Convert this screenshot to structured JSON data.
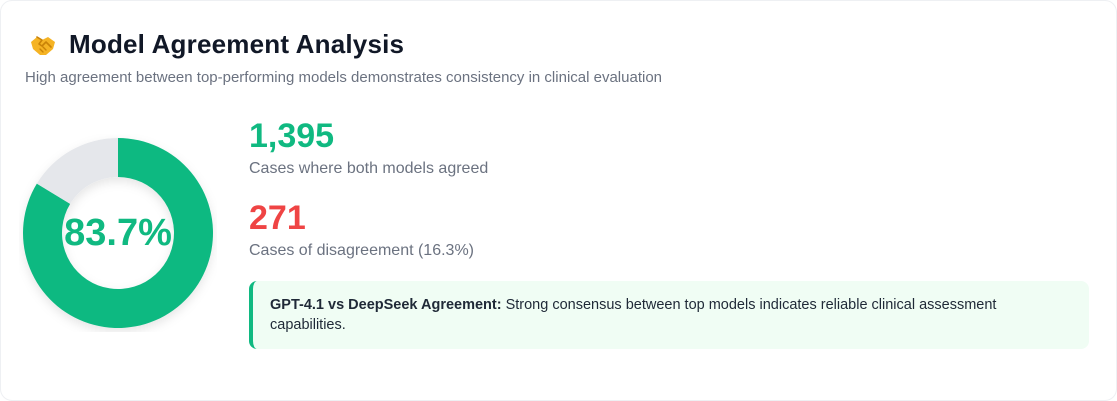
{
  "header": {
    "icon": "handshake-icon",
    "title": "Model Agreement Analysis",
    "subtitle": "High agreement between top-performing models demonstrates consistency in clinical evaluation"
  },
  "colors": {
    "agree": "#10b981",
    "disagree": "#e5e7eb",
    "disagree_text": "#ef4444"
  },
  "chart_data": {
    "type": "pie",
    "labels": [
      "",
      ""
    ],
    "values": [
      83.7,
      16.3
    ],
    "center_label": "83.7%"
  },
  "stats": {
    "agreed_count": "1,395",
    "agreed_label": "Cases where both models agreed",
    "disagreed_count": "271",
    "disagreed_label": "Cases of disagreement (16.3%)"
  },
  "note": {
    "bold": "GPT-4.1 vs DeepSeek Agreement:",
    "text": " Strong consensus between top models indicates reliable clinical assessment capabilities."
  }
}
